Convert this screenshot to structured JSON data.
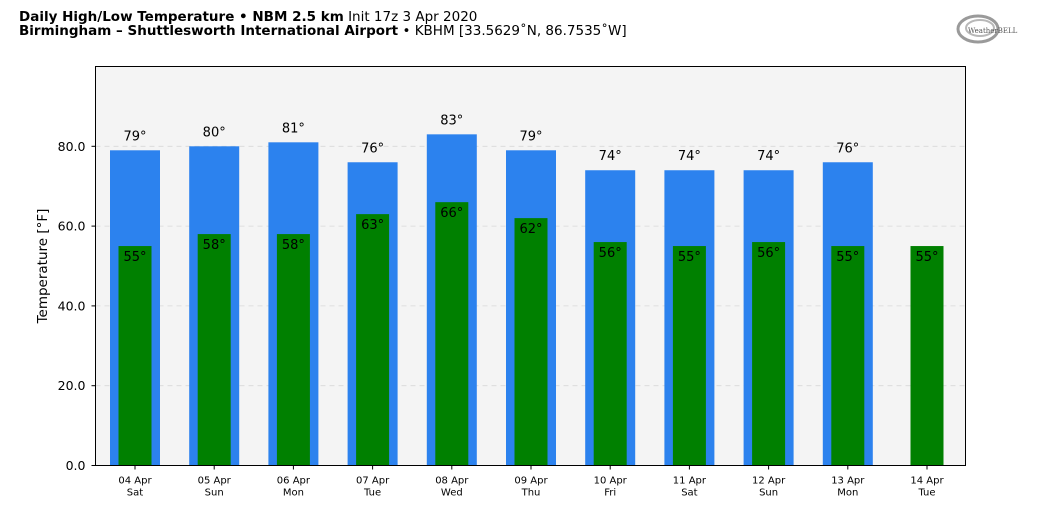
{
  "header": {
    "title_bold": "Daily High/Low Temperature • NBM 2.5 km",
    "init": "Init 17z 3 Apr 2020",
    "location_bold": "Birmingham – Shuttlesworth International Airport",
    "station": "• KBHM [33.5629˚N, 86.7535˚W]"
  },
  "logo": {
    "text": "WeatherBELL"
  },
  "colors": {
    "high": "#2c82ee",
    "low": "#008000",
    "plot_bg": "#f4f4f4"
  },
  "chart_data": {
    "type": "bar",
    "ylabel": "Temperature [°F]",
    "ylim": [
      0,
      100
    ],
    "yticks": [
      "0.0",
      "20.0",
      "40.0",
      "60.0",
      "80.0"
    ],
    "ytick_values": [
      0,
      20,
      40,
      60,
      80
    ],
    "grid": true,
    "categories": [
      {
        "date": "04 Apr",
        "day": "Sat"
      },
      {
        "date": "05 Apr",
        "day": "Sun"
      },
      {
        "date": "06 Apr",
        "day": "Mon"
      },
      {
        "date": "07 Apr",
        "day": "Tue"
      },
      {
        "date": "08 Apr",
        "day": "Wed"
      },
      {
        "date": "09 Apr",
        "day": "Thu"
      },
      {
        "date": "10 Apr",
        "day": "Fri"
      },
      {
        "date": "11 Apr",
        "day": "Sat"
      },
      {
        "date": "12 Apr",
        "day": "Sun"
      },
      {
        "date": "13 Apr",
        "day": "Mon"
      },
      {
        "date": "14 Apr",
        "day": "Tue"
      }
    ],
    "series": [
      {
        "key": "high",
        "values": [
          79,
          80,
          81,
          76,
          83,
          79,
          74,
          74,
          74,
          76,
          null
        ],
        "labels": [
          "79°",
          "80°",
          "81°",
          "76°",
          "83°",
          "79°",
          "74°",
          "74°",
          "74°",
          "76°",
          ""
        ]
      },
      {
        "key": "low",
        "values": [
          55,
          58,
          58,
          63,
          66,
          62,
          56,
          55,
          56,
          55,
          55
        ],
        "labels": [
          "55°",
          "58°",
          "58°",
          "63°",
          "66°",
          "62°",
          "56°",
          "55°",
          "56°",
          "55°",
          "55°"
        ]
      }
    ]
  }
}
